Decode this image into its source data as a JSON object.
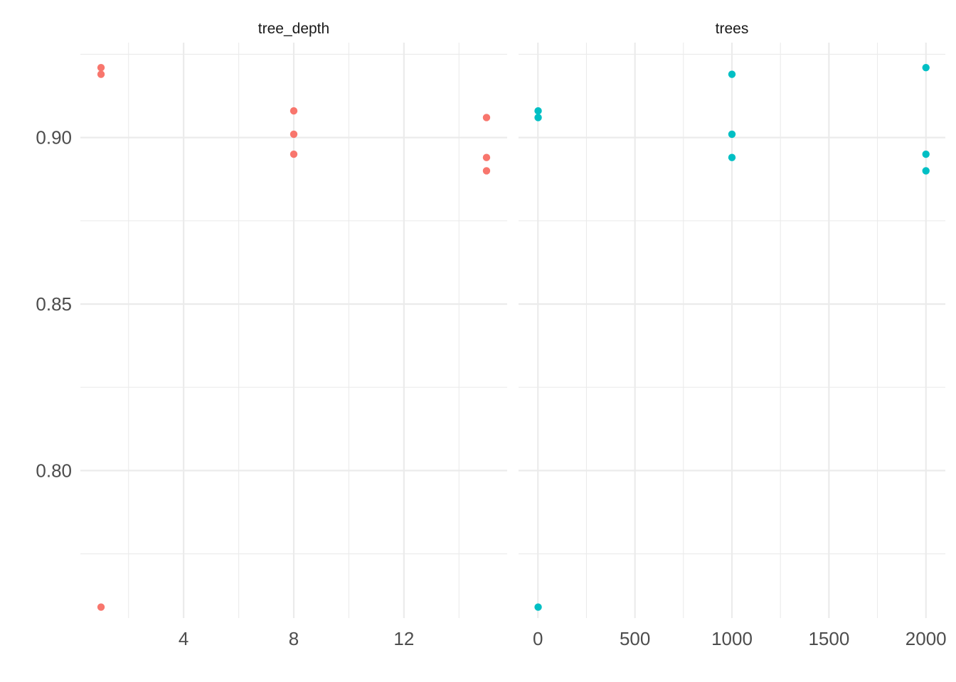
{
  "chart_data": {
    "type": "scatter",
    "title": "",
    "xlabel": "",
    "ylabel": "",
    "grid": true,
    "legend": "none",
    "y_ticks": [
      "0.80",
      "0.85",
      "0.90"
    ],
    "y_tick_values": [
      0.8,
      0.85,
      0.9
    ],
    "ylim": [
      0.7557,
      0.9285
    ],
    "facets": [
      {
        "label": "tree_depth",
        "color": "#F8766D",
        "xlim": [
          0.25,
          15.75
        ],
        "x_ticks": [
          "4",
          "8",
          "12"
        ],
        "x_tick_values": [
          4,
          8,
          12
        ],
        "x_minor": [
          2,
          6,
          10,
          14
        ],
        "points": [
          {
            "x": 1,
            "y": 0.921
          },
          {
            "x": 1,
            "y": 0.919
          },
          {
            "x": 1,
            "y": 0.759
          },
          {
            "x": 8,
            "y": 0.908
          },
          {
            "x": 8,
            "y": 0.901
          },
          {
            "x": 8,
            "y": 0.895
          },
          {
            "x": 15,
            "y": 0.906
          },
          {
            "x": 15,
            "y": 0.894
          },
          {
            "x": 15,
            "y": 0.89
          }
        ]
      },
      {
        "label": "trees",
        "color": "#00BFC4",
        "xlim": [
          -100,
          2100
        ],
        "x_ticks": [
          "0",
          "500",
          "1000",
          "1500",
          "2000"
        ],
        "x_tick_values": [
          0,
          500,
          1000,
          1500,
          2000
        ],
        "x_minor": [
          250,
          750,
          1250,
          1750
        ],
        "points": [
          {
            "x": 1,
            "y": 0.908
          },
          {
            "x": 1,
            "y": 0.906
          },
          {
            "x": 1,
            "y": 0.759
          },
          {
            "x": 1000,
            "y": 0.919
          },
          {
            "x": 1000,
            "y": 0.901
          },
          {
            "x": 1000,
            "y": 0.894
          },
          {
            "x": 2000,
            "y": 0.921
          },
          {
            "x": 2000,
            "y": 0.895
          },
          {
            "x": 2000,
            "y": 0.89
          }
        ]
      }
    ]
  }
}
